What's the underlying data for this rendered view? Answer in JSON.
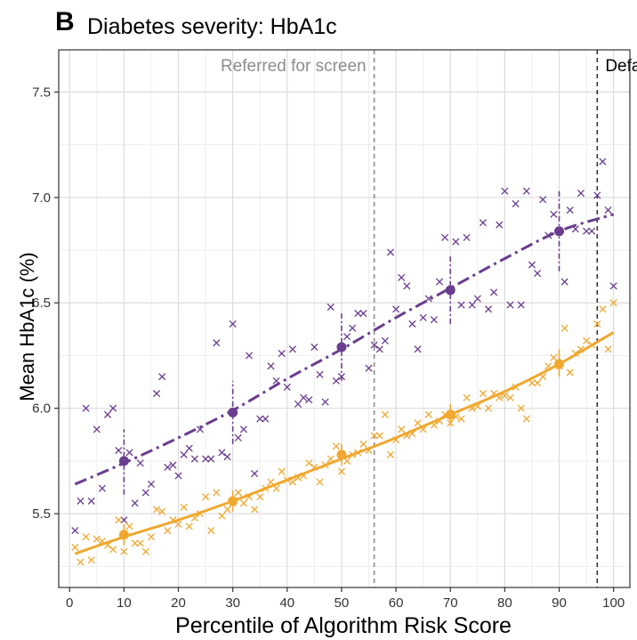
{
  "panel_letter": "B",
  "colors": {
    "purple": "#6a3d8f",
    "orange": "#f0a830",
    "grid_major": "#dcdcdc",
    "grid_minor": "#eeeeee",
    "vline_gray": "#8c8c8c",
    "vline_dark": "#333333",
    "annot_gray": "#8c8c8c",
    "annot_dark": "#000000"
  },
  "chart_data": {
    "type": "scatter",
    "title": "Diabetes severity: HbA1c",
    "xlabel": "Percentile of Algorithm Risk Score",
    "ylabel": "Mean HbA1c (%)",
    "xlim": [
      -2,
      103
    ],
    "ylim": [
      5.15,
      7.7
    ],
    "xticks": [
      0,
      10,
      20,
      30,
      40,
      50,
      60,
      70,
      80,
      90,
      100
    ],
    "yticks": [
      5.5,
      6.0,
      6.5,
      7.0,
      7.5
    ],
    "ytick_labels": [
      "5.5",
      "6.0",
      "6.5",
      "7.0",
      "7.5"
    ],
    "grid": true,
    "vlines": [
      {
        "x": 56,
        "label": "Referred for screen",
        "style": "gray"
      },
      {
        "x": 97,
        "label": "Defaulted into program",
        "style": "dark"
      }
    ],
    "series": [
      {
        "color_key": "purple",
        "marker": "x",
        "points": [
          [
            1,
            5.42
          ],
          [
            2,
            5.56
          ],
          [
            3,
            6.0
          ],
          [
            4,
            5.56
          ],
          [
            5,
            5.9
          ],
          [
            6,
            5.62
          ],
          [
            7,
            5.97
          ],
          [
            8,
            6.0
          ],
          [
            9,
            5.8
          ],
          [
            10,
            5.47
          ],
          [
            11,
            5.79
          ],
          [
            12,
            5.55
          ],
          [
            13,
            5.74
          ],
          [
            14,
            5.6
          ],
          [
            15,
            5.64
          ],
          [
            16,
            6.07
          ],
          [
            17,
            6.15
          ],
          [
            18,
            5.72
          ],
          [
            19,
            5.73
          ],
          [
            20,
            5.68
          ],
          [
            21,
            5.78
          ],
          [
            22,
            5.81
          ],
          [
            23,
            5.76
          ],
          [
            24,
            5.9
          ],
          [
            25,
            5.76
          ],
          [
            26,
            5.76
          ],
          [
            27,
            6.31
          ],
          [
            28,
            5.79
          ],
          [
            29,
            5.77
          ],
          [
            30,
            6.4
          ],
          [
            31,
            5.86
          ],
          [
            32,
            5.9
          ],
          [
            33,
            6.25
          ],
          [
            34,
            5.69
          ],
          [
            35,
            5.95
          ],
          [
            36,
            5.95
          ],
          [
            37,
            6.2
          ],
          [
            38,
            6.13
          ],
          [
            39,
            6.26
          ],
          [
            40,
            6.1
          ],
          [
            41,
            6.28
          ],
          [
            42,
            6.02
          ],
          [
            43,
            6.05
          ],
          [
            44,
            6.04
          ],
          [
            45,
            6.29
          ],
          [
            46,
            6.16
          ],
          [
            47,
            6.03
          ],
          [
            48,
            6.48
          ],
          [
            49,
            6.13
          ],
          [
            50,
            6.15
          ],
          [
            51,
            6.34
          ],
          [
            52,
            6.38
          ],
          [
            53,
            6.45
          ],
          [
            54,
            6.45
          ],
          [
            55,
            6.19
          ],
          [
            56,
            6.3
          ],
          [
            57,
            6.28
          ],
          [
            58,
            6.32
          ],
          [
            59,
            6.74
          ],
          [
            60,
            6.47
          ],
          [
            61,
            6.62
          ],
          [
            62,
            6.58
          ],
          [
            63,
            6.4
          ],
          [
            64,
            6.28
          ],
          [
            65,
            6.43
          ],
          [
            66,
            6.52
          ],
          [
            67,
            6.42
          ],
          [
            68,
            6.6
          ],
          [
            69,
            6.81
          ],
          [
            70,
            6.56
          ],
          [
            71,
            6.79
          ],
          [
            72,
            6.49
          ],
          [
            73,
            6.81
          ],
          [
            74,
            6.49
          ],
          [
            75,
            6.52
          ],
          [
            76,
            6.88
          ],
          [
            77,
            6.47
          ],
          [
            78,
            6.55
          ],
          [
            79,
            6.87
          ],
          [
            80,
            7.03
          ],
          [
            81,
            6.49
          ],
          [
            82,
            6.97
          ],
          [
            83,
            6.49
          ],
          [
            84,
            7.03
          ],
          [
            85,
            6.68
          ],
          [
            86,
            6.64
          ],
          [
            87,
            6.99
          ],
          [
            88,
            6.82
          ],
          [
            89,
            6.92
          ],
          [
            90,
            6.84
          ],
          [
            91,
            6.6
          ],
          [
            92,
            6.94
          ],
          [
            93,
            6.85
          ],
          [
            94,
            7.02
          ],
          [
            95,
            6.84
          ],
          [
            96,
            6.84
          ],
          [
            97,
            7.01
          ],
          [
            98,
            7.17
          ],
          [
            99,
            6.94
          ],
          [
            100,
            6.58
          ]
        ],
        "means": [
          {
            "x": 10,
            "y": 5.75,
            "lo": 5.59,
            "hi": 5.9
          },
          {
            "x": 30,
            "y": 5.98,
            "lo": 5.83,
            "hi": 6.13
          },
          {
            "x": 50,
            "y": 6.29,
            "lo": 6.13,
            "hi": 6.45
          },
          {
            "x": 70,
            "y": 6.56,
            "lo": 6.4,
            "hi": 6.72
          },
          {
            "x": 90,
            "y": 6.84,
            "lo": 6.65,
            "hi": 7.03
          }
        ],
        "fit": [
          [
            1,
            5.64
          ],
          [
            10,
            5.74
          ],
          [
            20,
            5.86
          ],
          [
            30,
            5.99
          ],
          [
            40,
            6.14
          ],
          [
            50,
            6.28
          ],
          [
            60,
            6.43
          ],
          [
            70,
            6.57
          ],
          [
            80,
            6.71
          ],
          [
            90,
            6.84
          ],
          [
            100,
            6.92
          ]
        ],
        "fit_style": "dashdot"
      },
      {
        "color_key": "orange",
        "marker": "x",
        "points": [
          [
            1,
            5.34
          ],
          [
            2,
            5.27
          ],
          [
            3,
            5.39
          ],
          [
            4,
            5.28
          ],
          [
            5,
            5.38
          ],
          [
            6,
            5.37
          ],
          [
            7,
            5.35
          ],
          [
            8,
            5.33
          ],
          [
            9,
            5.47
          ],
          [
            10,
            5.32
          ],
          [
            11,
            5.44
          ],
          [
            12,
            5.36
          ],
          [
            13,
            5.36
          ],
          [
            14,
            5.32
          ],
          [
            15,
            5.39
          ],
          [
            16,
            5.52
          ],
          [
            17,
            5.51
          ],
          [
            18,
            5.42
          ],
          [
            19,
            5.47
          ],
          [
            20,
            5.45
          ],
          [
            21,
            5.53
          ],
          [
            22,
            5.44
          ],
          [
            23,
            5.48
          ],
          [
            24,
            5.5
          ],
          [
            25,
            5.58
          ],
          [
            26,
            5.42
          ],
          [
            27,
            5.6
          ],
          [
            28,
            5.49
          ],
          [
            29,
            5.52
          ],
          [
            30,
            5.55
          ],
          [
            31,
            5.6
          ],
          [
            32,
            5.55
          ],
          [
            33,
            5.58
          ],
          [
            34,
            5.52
          ],
          [
            35,
            5.58
          ],
          [
            36,
            5.62
          ],
          [
            37,
            5.65
          ],
          [
            38,
            5.62
          ],
          [
            39,
            5.7
          ],
          [
            40,
            5.66
          ],
          [
            41,
            5.65
          ],
          [
            42,
            5.67
          ],
          [
            43,
            5.68
          ],
          [
            44,
            5.74
          ],
          [
            45,
            5.72
          ],
          [
            46,
            5.65
          ],
          [
            47,
            5.73
          ],
          [
            48,
            5.76
          ],
          [
            49,
            5.82
          ],
          [
            50,
            5.7
          ],
          [
            51,
            5.75
          ],
          [
            52,
            5.78
          ],
          [
            53,
            5.79
          ],
          [
            54,
            5.83
          ],
          [
            55,
            5.8
          ],
          [
            56,
            5.87
          ],
          [
            57,
            5.87
          ],
          [
            58,
            5.97
          ],
          [
            59,
            5.78
          ],
          [
            60,
            5.85
          ],
          [
            61,
            5.9
          ],
          [
            62,
            5.87
          ],
          [
            63,
            5.88
          ],
          [
            64,
            5.93
          ],
          [
            65,
            5.9
          ],
          [
            66,
            5.97
          ],
          [
            67,
            5.92
          ],
          [
            68,
            5.94
          ],
          [
            69,
            5.97
          ],
          [
            70,
            5.93
          ],
          [
            71,
            5.96
          ],
          [
            72,
            5.95
          ],
          [
            73,
            6.05
          ],
          [
            74,
            6.0
          ],
          [
            75,
            6.01
          ],
          [
            76,
            6.07
          ],
          [
            77,
            6.0
          ],
          [
            78,
            6.07
          ],
          [
            79,
            6.05
          ],
          [
            80,
            6.06
          ],
          [
            81,
            6.05
          ],
          [
            82,
            6.1
          ],
          [
            83,
            6.0
          ],
          [
            84,
            5.95
          ],
          [
            85,
            6.12
          ],
          [
            86,
            6.12
          ],
          [
            87,
            6.15
          ],
          [
            88,
            6.2
          ],
          [
            89,
            6.24
          ],
          [
            90,
            6.2
          ],
          [
            91,
            6.38
          ],
          [
            92,
            6.17
          ],
          [
            93,
            6.26
          ],
          [
            94,
            6.28
          ],
          [
            95,
            6.32
          ],
          [
            96,
            6.3
          ],
          [
            97,
            6.4
          ],
          [
            98,
            6.47
          ],
          [
            99,
            6.28
          ],
          [
            100,
            6.5
          ]
        ],
        "means": [
          {
            "x": 10,
            "y": 5.4,
            "lo": 5.35,
            "hi": 5.45
          },
          {
            "x": 30,
            "y": 5.56,
            "lo": 5.51,
            "hi": 5.61
          },
          {
            "x": 50,
            "y": 5.78,
            "lo": 5.73,
            "hi": 5.83
          },
          {
            "x": 70,
            "y": 5.97,
            "lo": 5.92,
            "hi": 6.02
          },
          {
            "x": 90,
            "y": 6.21,
            "lo": 6.15,
            "hi": 6.28
          }
        ],
        "fit": [
          [
            1,
            5.31
          ],
          [
            10,
            5.39
          ],
          [
            20,
            5.47
          ],
          [
            30,
            5.56
          ],
          [
            40,
            5.66
          ],
          [
            50,
            5.76
          ],
          [
            60,
            5.86
          ],
          [
            70,
            5.97
          ],
          [
            80,
            6.08
          ],
          [
            90,
            6.21
          ],
          [
            100,
            6.36
          ]
        ],
        "fit_style": "solid"
      }
    ]
  }
}
